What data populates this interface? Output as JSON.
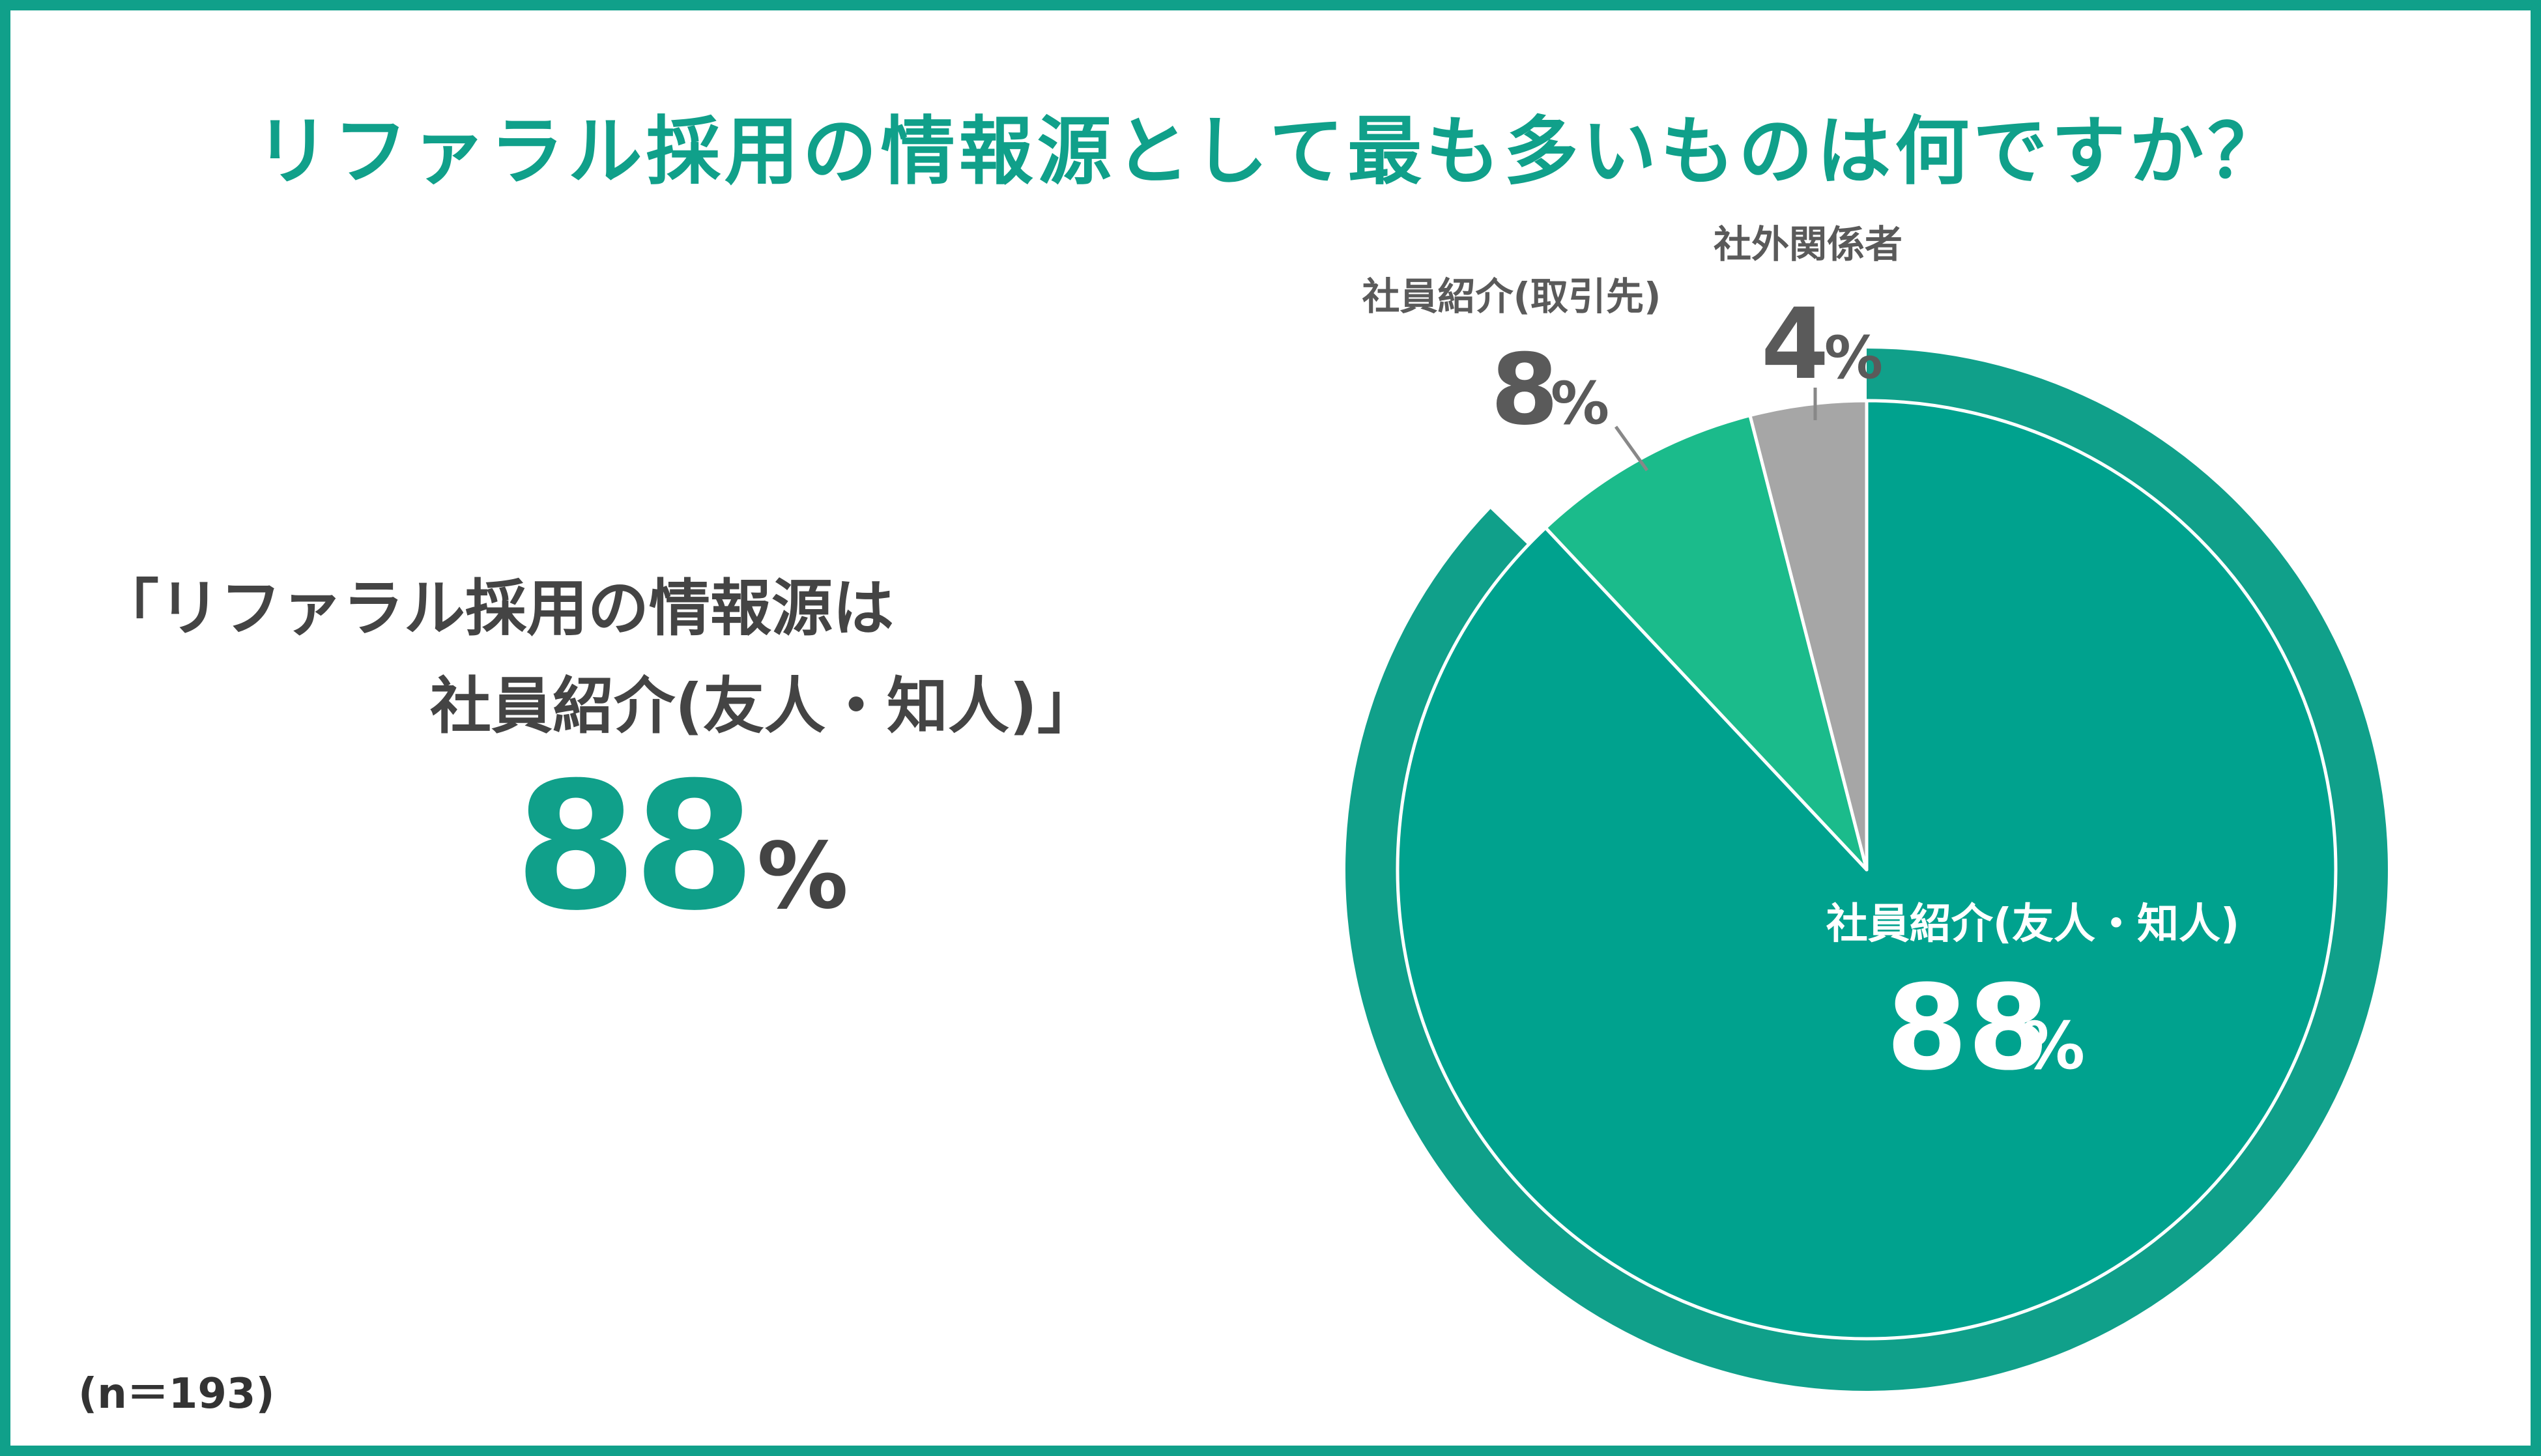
{
  "title": "リファラル採用の情報源として最も多いものは何ですか？",
  "highlight": {
    "line1": "「リファラル採用の情報源は",
    "line2": "社員紹介(友人・知人)」",
    "value": "88",
    "unit": "%"
  },
  "sample_size": "(n＝193)",
  "colors": {
    "frame": "#10a08a",
    "accent": "#10a08a",
    "main_slice": "#00a28e",
    "ring": "#10a08a",
    "second_slice": "#1bbb8b",
    "third_slice": "#a6a6a6",
    "dark_text": "#444444",
    "label_text": "#5a5a5a"
  },
  "chart_data": {
    "type": "pie",
    "unit": "%",
    "slices": [
      {
        "label": "社員紹介(友人・知人)",
        "value": 88,
        "display": "88",
        "color": "#00a28e"
      },
      {
        "label": "社員紹介(取引先)",
        "value": 8,
        "display": "8",
        "color": "#1bbb8b"
      },
      {
        "label": "社外関係者",
        "value": 4,
        "display": "4",
        "color": "#a6a6a6"
      }
    ],
    "emphasized_slice": "社員紹介(友人・知人)"
  }
}
